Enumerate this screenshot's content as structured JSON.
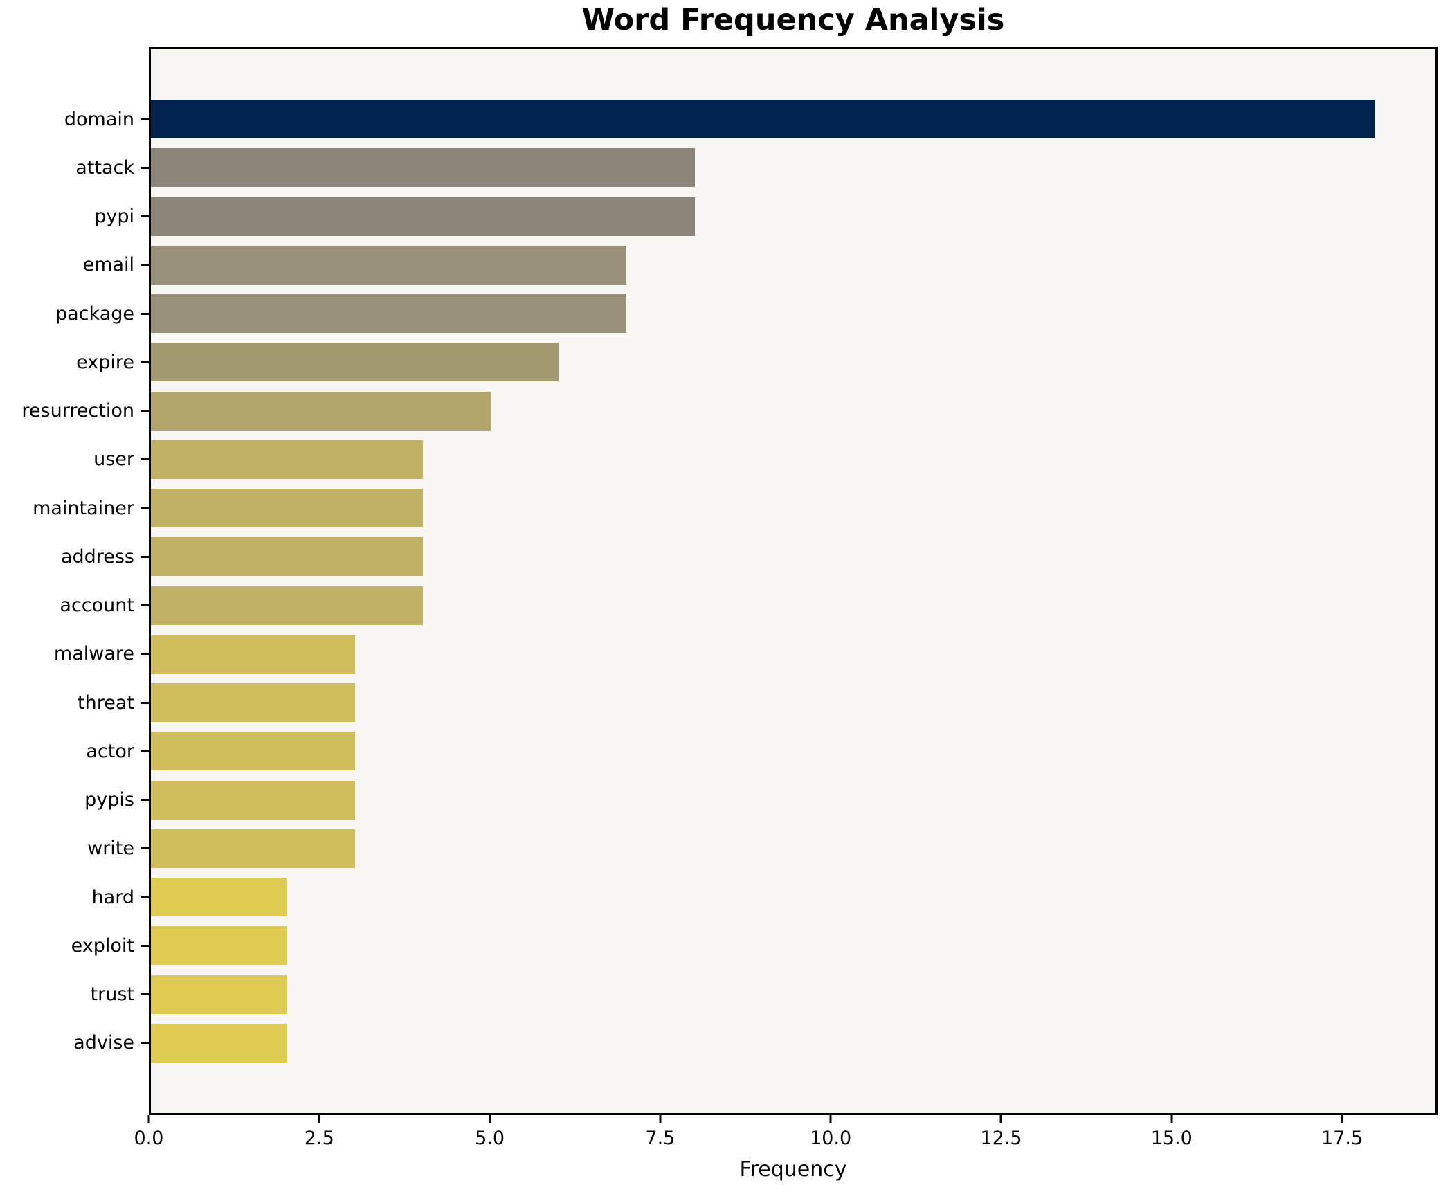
{
  "chart_data": {
    "type": "bar",
    "orientation": "horizontal",
    "title": "Word Frequency Analysis",
    "xlabel": "Frequency",
    "ylabel": "",
    "categories": [
      "domain",
      "attack",
      "pypi",
      "email",
      "package",
      "expire",
      "resurrection",
      "user",
      "maintainer",
      "address",
      "account",
      "malware",
      "threat",
      "actor",
      "pypis",
      "write",
      "hard",
      "exploit",
      "trust",
      "advise"
    ],
    "values": [
      18,
      8,
      8,
      7,
      7,
      6,
      5,
      4,
      4,
      4,
      4,
      3,
      3,
      3,
      3,
      3,
      2,
      2,
      2,
      2
    ],
    "bar_colors": [
      "#02234e",
      "#8a8578",
      "#8a8578",
      "#989078",
      "#989078",
      "#a49a72",
      "#b2a56b",
      "#c1b165",
      "#c1b165",
      "#c1b165",
      "#c1b165",
      "#d0bd5c",
      "#d0bd5c",
      "#d0bd5c",
      "#d0bd5c",
      "#d0bd5c",
      "#e0cb52",
      "#e0cb52",
      "#e0cb52",
      "#e0cb52"
    ],
    "xlim": [
      0,
      18.9
    ],
    "x_ticks": [
      0.0,
      2.5,
      5.0,
      7.5,
      10.0,
      12.5,
      15.0,
      17.5
    ],
    "x_tick_labels": [
      "0.0",
      "2.5",
      "5.0",
      "7.5",
      "10.0",
      "12.5",
      "15.0",
      "17.5"
    ],
    "grid": false,
    "legend": null,
    "plot_background": "#f7f6f3",
    "figure_background": "#ffffff",
    "spine_color": "#000000",
    "colormap": "cividis"
  }
}
